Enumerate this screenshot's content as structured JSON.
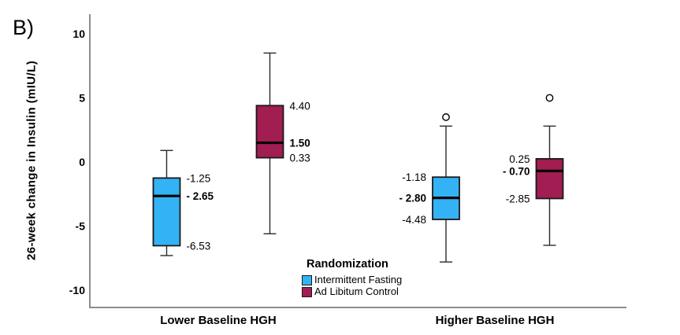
{
  "figure": {
    "label": "B)"
  },
  "chart_data": {
    "type": "boxplot",
    "title": "",
    "xlabel": "",
    "ylabel": "26-week change in Insulin (mIU/L)",
    "ylim": [
      -11.3,
      11.5
    ],
    "yticks": [
      10,
      5,
      0,
      -5,
      -10
    ],
    "ytick_labels": [
      "10",
      "5",
      "0",
      "-5",
      "-10"
    ],
    "grid": false,
    "groups": [
      "Lower Baseline HGH",
      "Higher Baseline HGH"
    ],
    "legend": {
      "title": "Randomization",
      "position": "bottom-center",
      "items": [
        {
          "label": "Intermittent Fasting",
          "color": "#33B2F5"
        },
        {
          "label": "Ad Libitum Control",
          "color": "#A11D52"
        }
      ]
    },
    "series": [
      {
        "name": "Intermittent Fasting",
        "color": "#33B2F5",
        "boxes": [
          {
            "group": "Lower Baseline HGH",
            "whisker_low": -7.3,
            "q1": -6.53,
            "median": -2.65,
            "q3": -1.25,
            "whisker_high": 0.9,
            "outliers": [],
            "labels": {
              "q3": "-1.25",
              "median": "- 2.65",
              "q1": "-6.53"
            },
            "label_side": "right"
          },
          {
            "group": "Higher Baseline HGH",
            "whisker_low": -7.8,
            "q1": -4.48,
            "median": -2.8,
            "q3": -1.18,
            "whisker_high": 2.8,
            "outliers": [
              3.5
            ],
            "labels": {
              "q3": "-1.18",
              "median": "- 2.80",
              "q1": "-4.48"
            },
            "label_side": "left"
          }
        ]
      },
      {
        "name": "Ad Libitum Control",
        "color": "#A11D52",
        "boxes": [
          {
            "group": "Lower Baseline HGH",
            "whisker_low": -5.6,
            "q1": 0.33,
            "median": 1.5,
            "q3": 4.4,
            "whisker_high": 8.5,
            "outliers": [],
            "labels": {
              "q3": "4.40",
              "median": "1.50",
              "q1": "0.33"
            },
            "label_side": "right"
          },
          {
            "group": "Higher Baseline HGH",
            "whisker_low": -6.5,
            "q1": -2.85,
            "median": -0.7,
            "q3": 0.25,
            "whisker_high": 2.8,
            "outliers": [
              5.0
            ],
            "labels": {
              "q3": "0.25",
              "median": "- 0.70",
              "q1": "-2.85"
            },
            "label_side": "left"
          }
        ]
      }
    ],
    "colors": {
      "axis": "#8c8c8c",
      "box_stroke": "#1a1a1a",
      "median": "#000000",
      "whisker": "#2b2b2b",
      "text": "#000000"
    }
  }
}
